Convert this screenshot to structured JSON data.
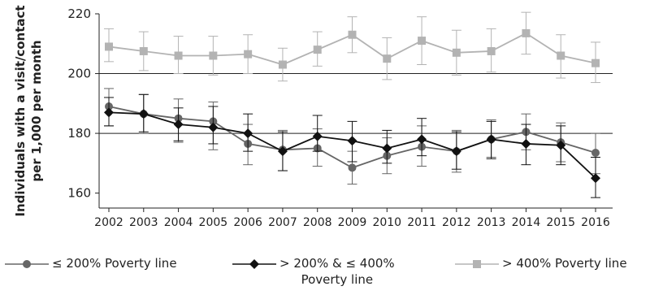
{
  "chart_data": {
    "type": "line",
    "title": "",
    "ylabel_lines": [
      "Individuals with a visit/contact",
      "per 1,000 per month"
    ],
    "xlabel": "",
    "categories": [
      "2002",
      "2003",
      "2004",
      "2005",
      "2006",
      "2007",
      "2008",
      "2009",
      "2010",
      "2011",
      "2012",
      "2013",
      "2014",
      "2015",
      "2016"
    ],
    "ylim": [
      155,
      220
    ],
    "yticks": [
      160,
      180,
      200,
      220
    ],
    "gridlines": [
      180,
      200
    ],
    "legend_position": "bottom",
    "series": [
      {
        "name": "≤ 200% Poverty line",
        "color": "#666666",
        "marker": "circle",
        "values": [
          189,
          186.5,
          185,
          184,
          176.5,
          174.5,
          175,
          168.5,
          172.5,
          175.5,
          174,
          178,
          180.5,
          177,
          173.5
        ],
        "err_low": [
          182.5,
          180,
          177,
          174.5,
          169.5,
          167.5,
          169,
          163,
          166.5,
          169,
          167,
          172,
          174.5,
          170.5,
          166.5
        ],
        "err_high": [
          195,
          193,
          191.5,
          190.5,
          183,
          181,
          181.5,
          174,
          178.5,
          182.5,
          181,
          184.5,
          186.5,
          183.5,
          180
        ]
      },
      {
        "name": "> 200% & ≤ 400%",
        "name_line2": "Poverty line",
        "color": "#111111",
        "marker": "diamond",
        "values": [
          187,
          186.5,
          183,
          182,
          180,
          174,
          179,
          177.5,
          175,
          178,
          174,
          178,
          176.5,
          176,
          165
        ],
        "err_low": [
          182.5,
          180.5,
          177.5,
          176.5,
          174,
          167.5,
          174,
          170.5,
          170,
          172.5,
          168,
          171.5,
          169.5,
          169.5,
          158.5
        ],
        "err_high": [
          192,
          193,
          188.5,
          189,
          186.5,
          180.5,
          186,
          184,
          181,
          185,
          180.5,
          184,
          183,
          182.5,
          172
        ]
      },
      {
        "name": "> 400% Poverty line",
        "color": "#b3b3b3",
        "marker": "square",
        "values": [
          209,
          207.5,
          206,
          206,
          206.5,
          203,
          208,
          213,
          205,
          211,
          207,
          207.5,
          213.5,
          206,
          203.5
        ],
        "err_low": [
          204,
          201,
          200,
          199.5,
          200,
          197.5,
          202.5,
          207,
          198,
          203,
          199.5,
          200.5,
          206.5,
          198.5,
          197
        ],
        "err_high": [
          215,
          214,
          212.5,
          212.5,
          213,
          208.5,
          214,
          219,
          212,
          219,
          214.5,
          215,
          220.5,
          213,
          210.5
        ]
      }
    ]
  }
}
